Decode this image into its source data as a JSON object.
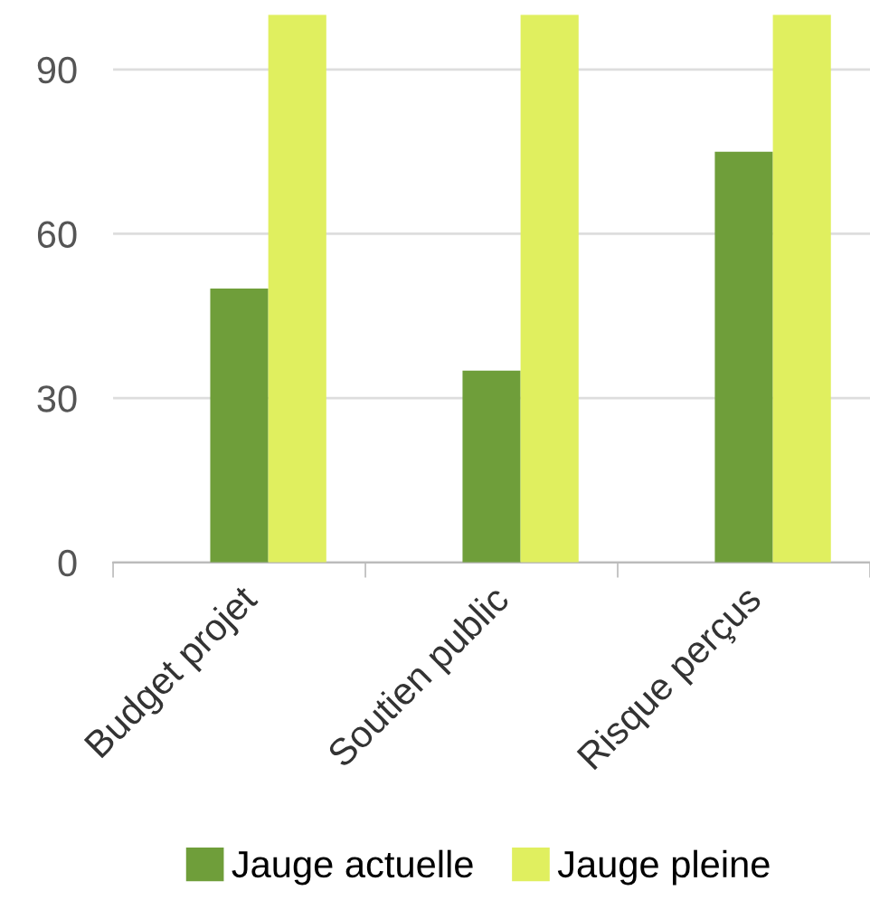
{
  "chart_data": {
    "type": "bar",
    "categories": [
      "Budget projet",
      "Soutien public",
      "Risque perçus"
    ],
    "series": [
      {
        "name": "Jauge actuelle",
        "color": "#6f9e3a",
        "values": [
          50,
          35,
          75
        ]
      },
      {
        "name": "Jauge pleine",
        "color": "#e0ef5f",
        "values": [
          100,
          100,
          100
        ]
      }
    ],
    "ylim": [
      0,
      100
    ],
    "yticks": [
      0,
      30,
      60,
      90
    ],
    "grid": "y",
    "legend": "bottom"
  }
}
